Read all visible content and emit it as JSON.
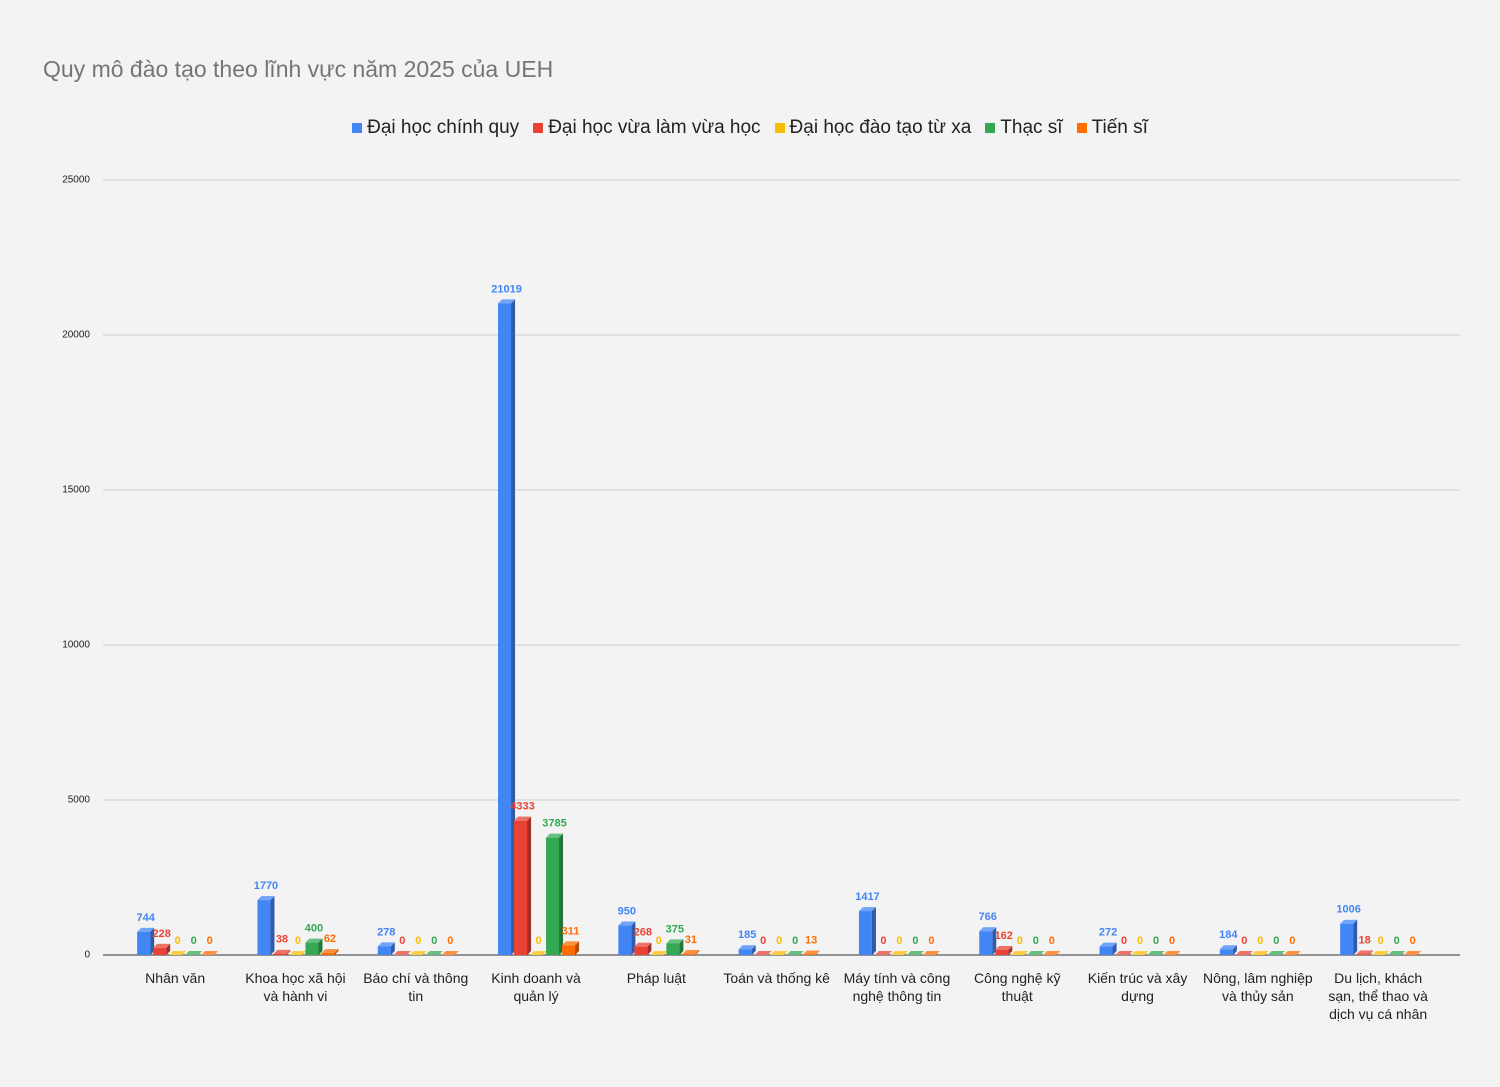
{
  "chart_data": {
    "type": "bar",
    "title": "Quy mô đào tạo theo lĩnh vực năm 2025 của UEH",
    "categories": [
      "Nhân văn",
      "Khoa học xã hội và hành vi",
      "Báo chí và thông tin",
      "Kinh doanh và quản lý",
      "Pháp luật",
      "Toán và thống kê",
      "Máy tính và công nghệ thông tin",
      "Công nghệ kỹ thuật",
      "Kiến trúc và xây dựng",
      "Nông, lâm nghiệp và thủy sản",
      "Du lịch, khách sạn, thể thao và dịch vụ cá nhân"
    ],
    "series": [
      {
        "name": "Đại học chính quy",
        "color": "#4285f4",
        "values": [
          744,
          1770,
          278,
          21019,
          950,
          185,
          1417,
          766,
          272,
          184,
          1006
        ]
      },
      {
        "name": "Đại học vừa làm vừa học",
        "color": "#ea4335",
        "values": [
          228,
          38,
          0,
          4333,
          268,
          0,
          0,
          162,
          0,
          0,
          18
        ]
      },
      {
        "name": "Đại học đào tạo từ xa",
        "color": "#fbbc04",
        "values": [
          0,
          0,
          0,
          0,
          0,
          0,
          0,
          0,
          0,
          0,
          0
        ]
      },
      {
        "name": "Thạc sĩ",
        "color": "#34a853",
        "values": [
          0,
          400,
          0,
          3785,
          375,
          0,
          0,
          0,
          0,
          0,
          0
        ]
      },
      {
        "name": "Tiến sĩ",
        "color": "#ff6d01",
        "values": [
          0,
          62,
          0,
          311,
          31,
          13,
          0,
          0,
          0,
          0,
          0
        ]
      }
    ],
    "ylim": [
      0,
      25000
    ],
    "yticks": [
      0,
      5000,
      10000,
      15000,
      20000,
      25000
    ],
    "grid": true,
    "legend": "top"
  }
}
